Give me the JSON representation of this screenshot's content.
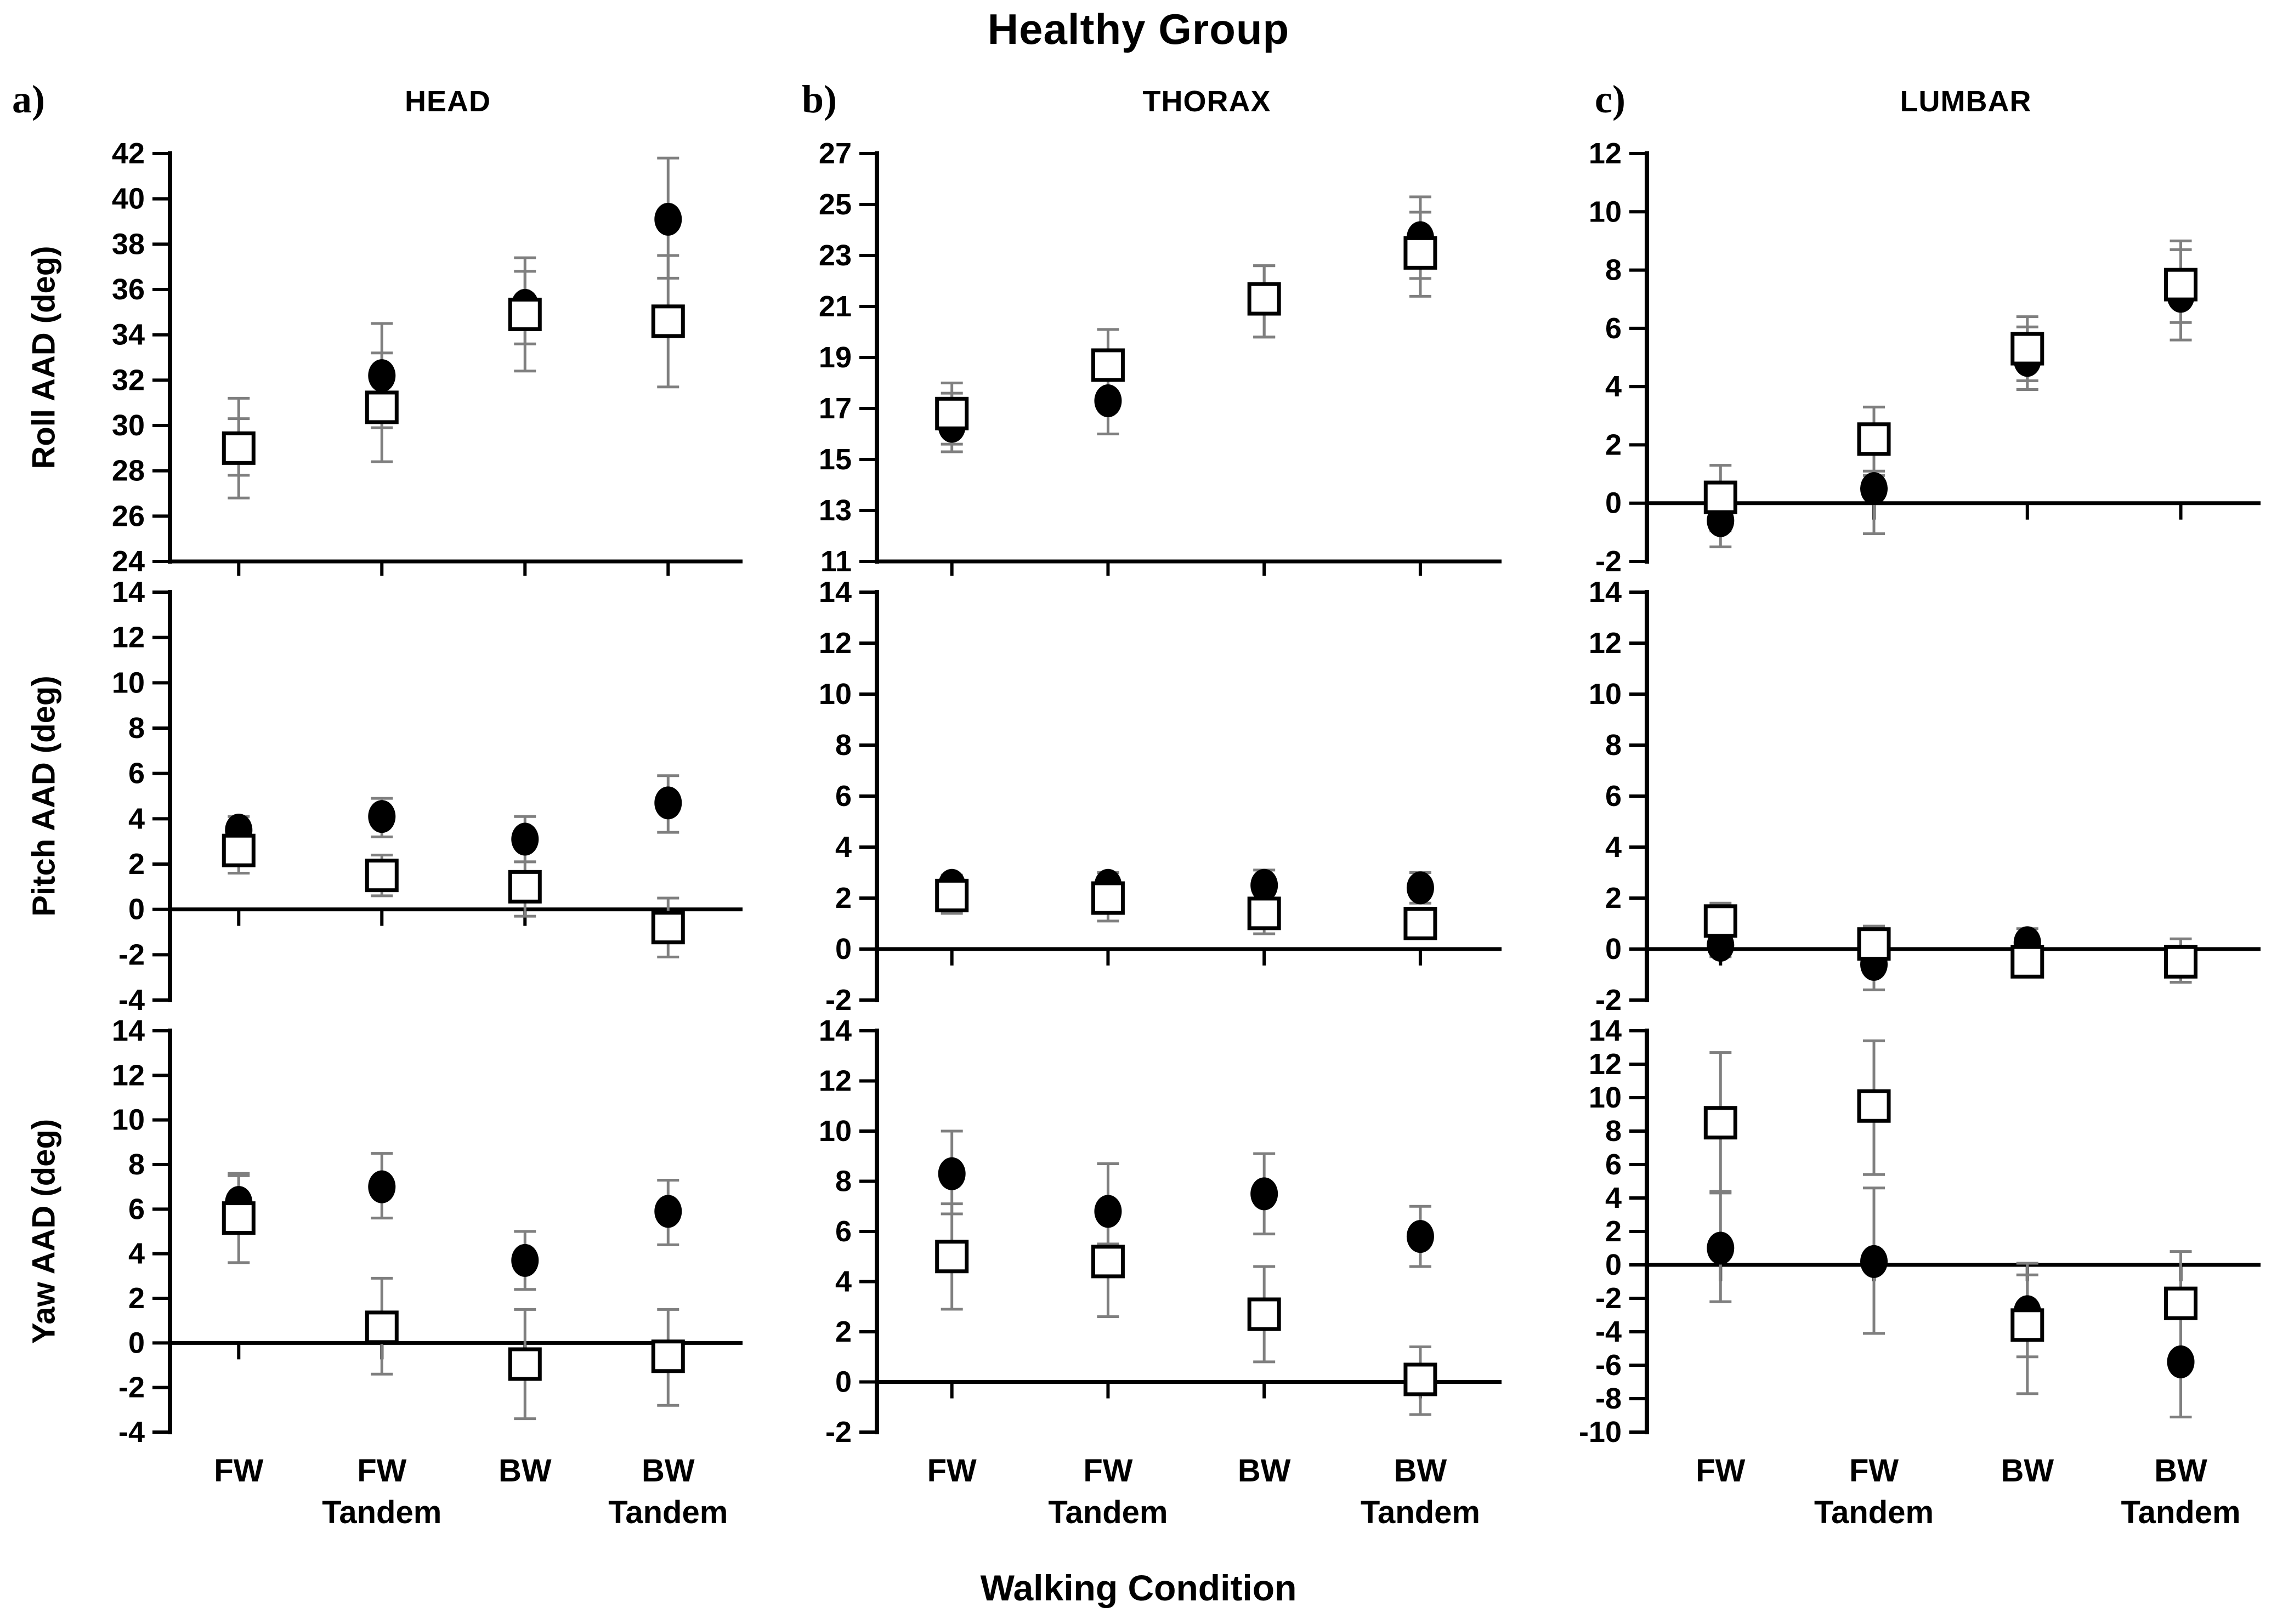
{
  "header": {
    "title": "Healthy Group"
  },
  "footer": {
    "xlabel": "Walking Condition"
  },
  "columns": [
    {
      "panel": "a)",
      "title": "HEAD"
    },
    {
      "panel": "b)",
      "title": "THORAX"
    },
    {
      "panel": "c)",
      "title": "LUMBAR"
    }
  ],
  "x_categories": [
    "FW",
    "FW Tandem",
    "BW",
    "BW Tandem"
  ],
  "style": {
    "marker_fill_circle": "#000000",
    "marker_fill_square": "#ffffff",
    "marker_stroke": "#000000",
    "error_bar_color": "#7f7f7f",
    "axis_color": "#000000"
  },
  "chart_data": [
    {
      "id": "head-roll",
      "type": "scatter",
      "row": "Roll",
      "column": "HEAD",
      "ylabel": "Roll AAD (deg)",
      "ylim": [
        24,
        42
      ],
      "ytick_step": 2,
      "yticks": [
        24,
        26,
        28,
        30,
        32,
        34,
        36,
        38,
        40,
        42
      ],
      "grid": false,
      "legend": "none",
      "series": [
        {
          "name": "filled-circle",
          "marker": "circle",
          "values": [
            29.0,
            32.2,
            35.3,
            39.1
          ],
          "err_lo": [
            27.8,
            29.9,
            33.6,
            36.5
          ],
          "err_hi": [
            30.3,
            34.5,
            36.8,
            41.8
          ]
        },
        {
          "name": "open-square",
          "marker": "square",
          "values": [
            29.0,
            30.8,
            34.9,
            34.6
          ],
          "err_lo": [
            26.8,
            28.4,
            32.4,
            31.7
          ],
          "err_hi": [
            31.2,
            33.2,
            37.4,
            37.5
          ]
        }
      ]
    },
    {
      "id": "thorax-roll",
      "type": "scatter",
      "row": "Roll",
      "column": "THORAX",
      "ylabel": null,
      "ylim": [
        11,
        27
      ],
      "ytick_step": 2,
      "yticks": [
        11,
        13,
        15,
        17,
        19,
        21,
        23,
        25,
        27
      ],
      "grid": false,
      "legend": "none",
      "series": [
        {
          "name": "filled-circle",
          "marker": "circle",
          "values": [
            16.3,
            17.3,
            21.3,
            23.7
          ],
          "err_lo": [
            15.3,
            16.0,
            19.8,
            22.1
          ],
          "err_hi": [
            17.6,
            18.6,
            22.6,
            25.3
          ]
        },
        {
          "name": "open-square",
          "marker": "square",
          "values": [
            16.8,
            18.7,
            21.3,
            23.1
          ],
          "err_lo": [
            15.6,
            17.2,
            19.8,
            21.4
          ],
          "err_hi": [
            18.0,
            20.1,
            22.6,
            24.7
          ]
        }
      ]
    },
    {
      "id": "lumbar-roll",
      "type": "scatter",
      "row": "Roll",
      "column": "LUMBAR",
      "ylabel": null,
      "ylim": [
        -2,
        12
      ],
      "ytick_step": 2,
      "yticks": [
        -2,
        0,
        2,
        4,
        6,
        8,
        10,
        12
      ],
      "grid": false,
      "legend": "none",
      "series": [
        {
          "name": "filled-circle",
          "marker": "circle",
          "values": [
            -0.6,
            0.5,
            4.9,
            7.1
          ],
          "err_lo": [
            -0.95,
            -1.05,
            3.9,
            5.6
          ],
          "err_hi": [
            -0.2,
            0.95,
            6.05,
            8.7
          ]
        },
        {
          "name": "open-square",
          "marker": "square",
          "values": [
            0.2,
            2.2,
            5.3,
            7.5
          ],
          "err_lo": [
            -1.5,
            1.1,
            4.2,
            6.2
          ],
          "err_hi": [
            1.3,
            3.3,
            6.4,
            9.0
          ]
        }
      ]
    },
    {
      "id": "head-pitch",
      "type": "scatter",
      "row": "Pitch",
      "column": "HEAD",
      "ylabel": "Pitch AAD (deg)",
      "ylim": [
        -4,
        14
      ],
      "ytick_step": 2,
      "yticks": [
        -4,
        -2,
        0,
        2,
        4,
        6,
        8,
        10,
        12,
        14
      ],
      "grid": false,
      "legend": "none",
      "series": [
        {
          "name": "filled-circle",
          "marker": "circle",
          "values": [
            3.5,
            4.1,
            3.1,
            4.7
          ],
          "err_lo": [
            2.8,
            3.2,
            2.1,
            3.4
          ],
          "err_hi": [
            4.1,
            4.9,
            4.1,
            5.9
          ]
        },
        {
          "name": "open-square",
          "marker": "square",
          "values": [
            2.6,
            1.5,
            1.0,
            -0.8
          ],
          "err_lo": [
            1.6,
            0.6,
            -0.3,
            -2.1
          ],
          "err_hi": [
            3.6,
            2.4,
            2.1,
            0.5
          ]
        }
      ]
    },
    {
      "id": "thorax-pitch",
      "type": "scatter",
      "row": "Pitch",
      "column": "THORAX",
      "ylabel": null,
      "ylim": [
        -2,
        14
      ],
      "ytick_step": 2,
      "yticks": [
        -2,
        0,
        2,
        4,
        6,
        8,
        10,
        12,
        14
      ],
      "grid": false,
      "legend": "none",
      "series": [
        {
          "name": "filled-circle",
          "marker": "circle",
          "values": [
            2.5,
            2.5,
            2.5,
            2.4
          ],
          "err_lo": [
            2.1,
            1.9,
            2.0,
            1.8
          ],
          "err_hi": [
            2.9,
            3.0,
            3.1,
            3.0
          ]
        },
        {
          "name": "open-square",
          "marker": "square",
          "values": [
            2.1,
            2.0,
            1.4,
            1.0
          ],
          "err_lo": [
            1.4,
            1.1,
            0.6,
            0.4
          ],
          "err_hi": [
            2.8,
            3.0,
            2.2,
            1.5
          ]
        }
      ]
    },
    {
      "id": "lumbar-pitch",
      "type": "scatter",
      "row": "Pitch",
      "column": "LUMBAR",
      "ylabel": null,
      "ylim": [
        -2,
        14
      ],
      "ytick_step": 2,
      "yticks": [
        -2,
        0,
        2,
        4,
        6,
        8,
        10,
        12,
        14
      ],
      "grid": false,
      "legend": "none",
      "series": [
        {
          "name": "filled-circle",
          "marker": "circle",
          "values": [
            0.15,
            -0.6,
            0.25,
            -0.5
          ],
          "err_lo": [
            -0.3,
            -1.6,
            -0.1,
            -1.0
          ],
          "err_hi": [
            0.5,
            0.0,
            0.8,
            0.0
          ]
        },
        {
          "name": "open-square",
          "marker": "square",
          "values": [
            1.1,
            0.2,
            -0.5,
            -0.5
          ],
          "err_lo": [
            0.6,
            -0.4,
            -0.9,
            -1.3
          ],
          "err_hi": [
            1.8,
            0.9,
            0.1,
            0.4
          ]
        }
      ]
    },
    {
      "id": "head-yaw",
      "type": "scatter",
      "row": "Yaw",
      "column": "HEAD",
      "ylabel": "Yaw AAD (deg)",
      "ylim": [
        -4,
        14
      ],
      "ytick_step": 2,
      "yticks": [
        -4,
        -2,
        0,
        2,
        4,
        6,
        8,
        10,
        12,
        14
      ],
      "grid": false,
      "legend": "none",
      "series": [
        {
          "name": "filled-circle",
          "marker": "circle",
          "values": [
            6.3,
            7.0,
            3.7,
            5.9
          ],
          "err_lo": [
            5.1,
            5.6,
            2.4,
            4.4
          ],
          "err_hi": [
            7.6,
            8.5,
            5.0,
            7.3
          ]
        },
        {
          "name": "open-square",
          "marker": "square",
          "values": [
            5.6,
            0.7,
            -0.95,
            -0.6
          ],
          "err_lo": [
            3.6,
            -1.4,
            -3.4,
            -2.8
          ],
          "err_hi": [
            7.5,
            2.9,
            1.5,
            1.5
          ]
        }
      ]
    },
    {
      "id": "thorax-yaw",
      "type": "scatter",
      "row": "Yaw",
      "column": "THORAX",
      "ylabel": null,
      "ylim": [
        -2,
        14
      ],
      "ytick_step": 2,
      "yticks": [
        -2,
        0,
        2,
        4,
        6,
        8,
        10,
        12,
        14
      ],
      "grid": false,
      "legend": "none",
      "series": [
        {
          "name": "filled-circle",
          "marker": "circle",
          "values": [
            8.3,
            6.8,
            7.5,
            5.8
          ],
          "err_lo": [
            6.7,
            5.5,
            5.9,
            4.6
          ],
          "err_hi": [
            10.0,
            8.7,
            9.1,
            7.0
          ]
        },
        {
          "name": "open-square",
          "marker": "square",
          "values": [
            5.0,
            4.8,
            2.7,
            0.1
          ],
          "err_lo": [
            2.9,
            2.6,
            0.8,
            -1.3
          ],
          "err_hi": [
            7.1,
            6.9,
            4.6,
            1.4
          ]
        }
      ]
    },
    {
      "id": "lumbar-yaw",
      "type": "scatter",
      "row": "Yaw",
      "column": "LUMBAR",
      "ylabel": null,
      "ylim": [
        -10,
        14
      ],
      "ytick_step": 2,
      "yticks": [
        -10,
        -8,
        -6,
        -4,
        -2,
        0,
        2,
        4,
        6,
        8,
        10,
        12,
        14
      ],
      "grid": false,
      "legend": "none",
      "series": [
        {
          "name": "filled-circle",
          "marker": "circle",
          "values": [
            1.0,
            0.2,
            -2.8,
            -5.8
          ],
          "err_lo": [
            -2.2,
            -4.1,
            -5.5,
            -9.1
          ],
          "err_hi": [
            4.3,
            4.6,
            -0.6,
            -2.6
          ]
        },
        {
          "name": "open-square",
          "marker": "square",
          "values": [
            8.5,
            9.5,
            -3.6,
            -2.3
          ],
          "err_lo": [
            4.4,
            5.4,
            -7.7,
            -5.4
          ],
          "err_hi": [
            12.7,
            13.4,
            0.1,
            0.8
          ]
        }
      ]
    }
  ]
}
